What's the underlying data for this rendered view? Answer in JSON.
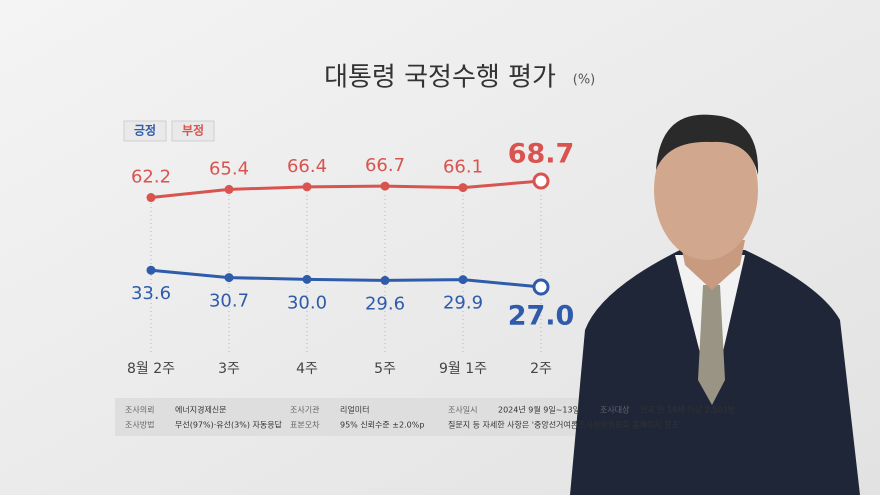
{
  "chart_data": {
    "type": "line",
    "title": "대통령 국정수행 평가",
    "unit": "(%)",
    "categories": [
      "8월 2주",
      "3주",
      "4주",
      "5주",
      "9월 1주",
      "2주"
    ],
    "series": [
      {
        "name": "긍정",
        "color": "#2f5bab",
        "values": [
          33.6,
          30.7,
          30.0,
          29.6,
          29.9,
          27.0
        ],
        "value_labels": [
          "33.6",
          "30.7",
          "30.0",
          "29.6",
          "29.9",
          "27.0"
        ]
      },
      {
        "name": "부정",
        "color": "#d9534f",
        "values": [
          62.2,
          65.4,
          66.4,
          66.7,
          66.1,
          68.7
        ],
        "value_labels": [
          "62.2",
          "65.4",
          "66.4",
          "66.7",
          "66.1",
          "68.7"
        ]
      }
    ],
    "notes": [
      [
        "조사의뢰",
        "에너지경제신문"
      ],
      [
        "조사기관",
        "리얼미터"
      ],
      [
        "조사일시",
        "2024년 9월 9일~13일"
      ],
      [
        "조사대상",
        "전국 만 18세 이상 2,503명"
      ],
      [
        "조사방법",
        "무선(97%)·유선(3%) 자동응답"
      ],
      [
        "표본오차",
        "95% 신뢰수준 ±2.0%p"
      ],
      [
        "질문지 등 자세한 사항은 '중앙선거여론조사심의위원회 홈페이지 참조'"
      ]
    ]
  }
}
